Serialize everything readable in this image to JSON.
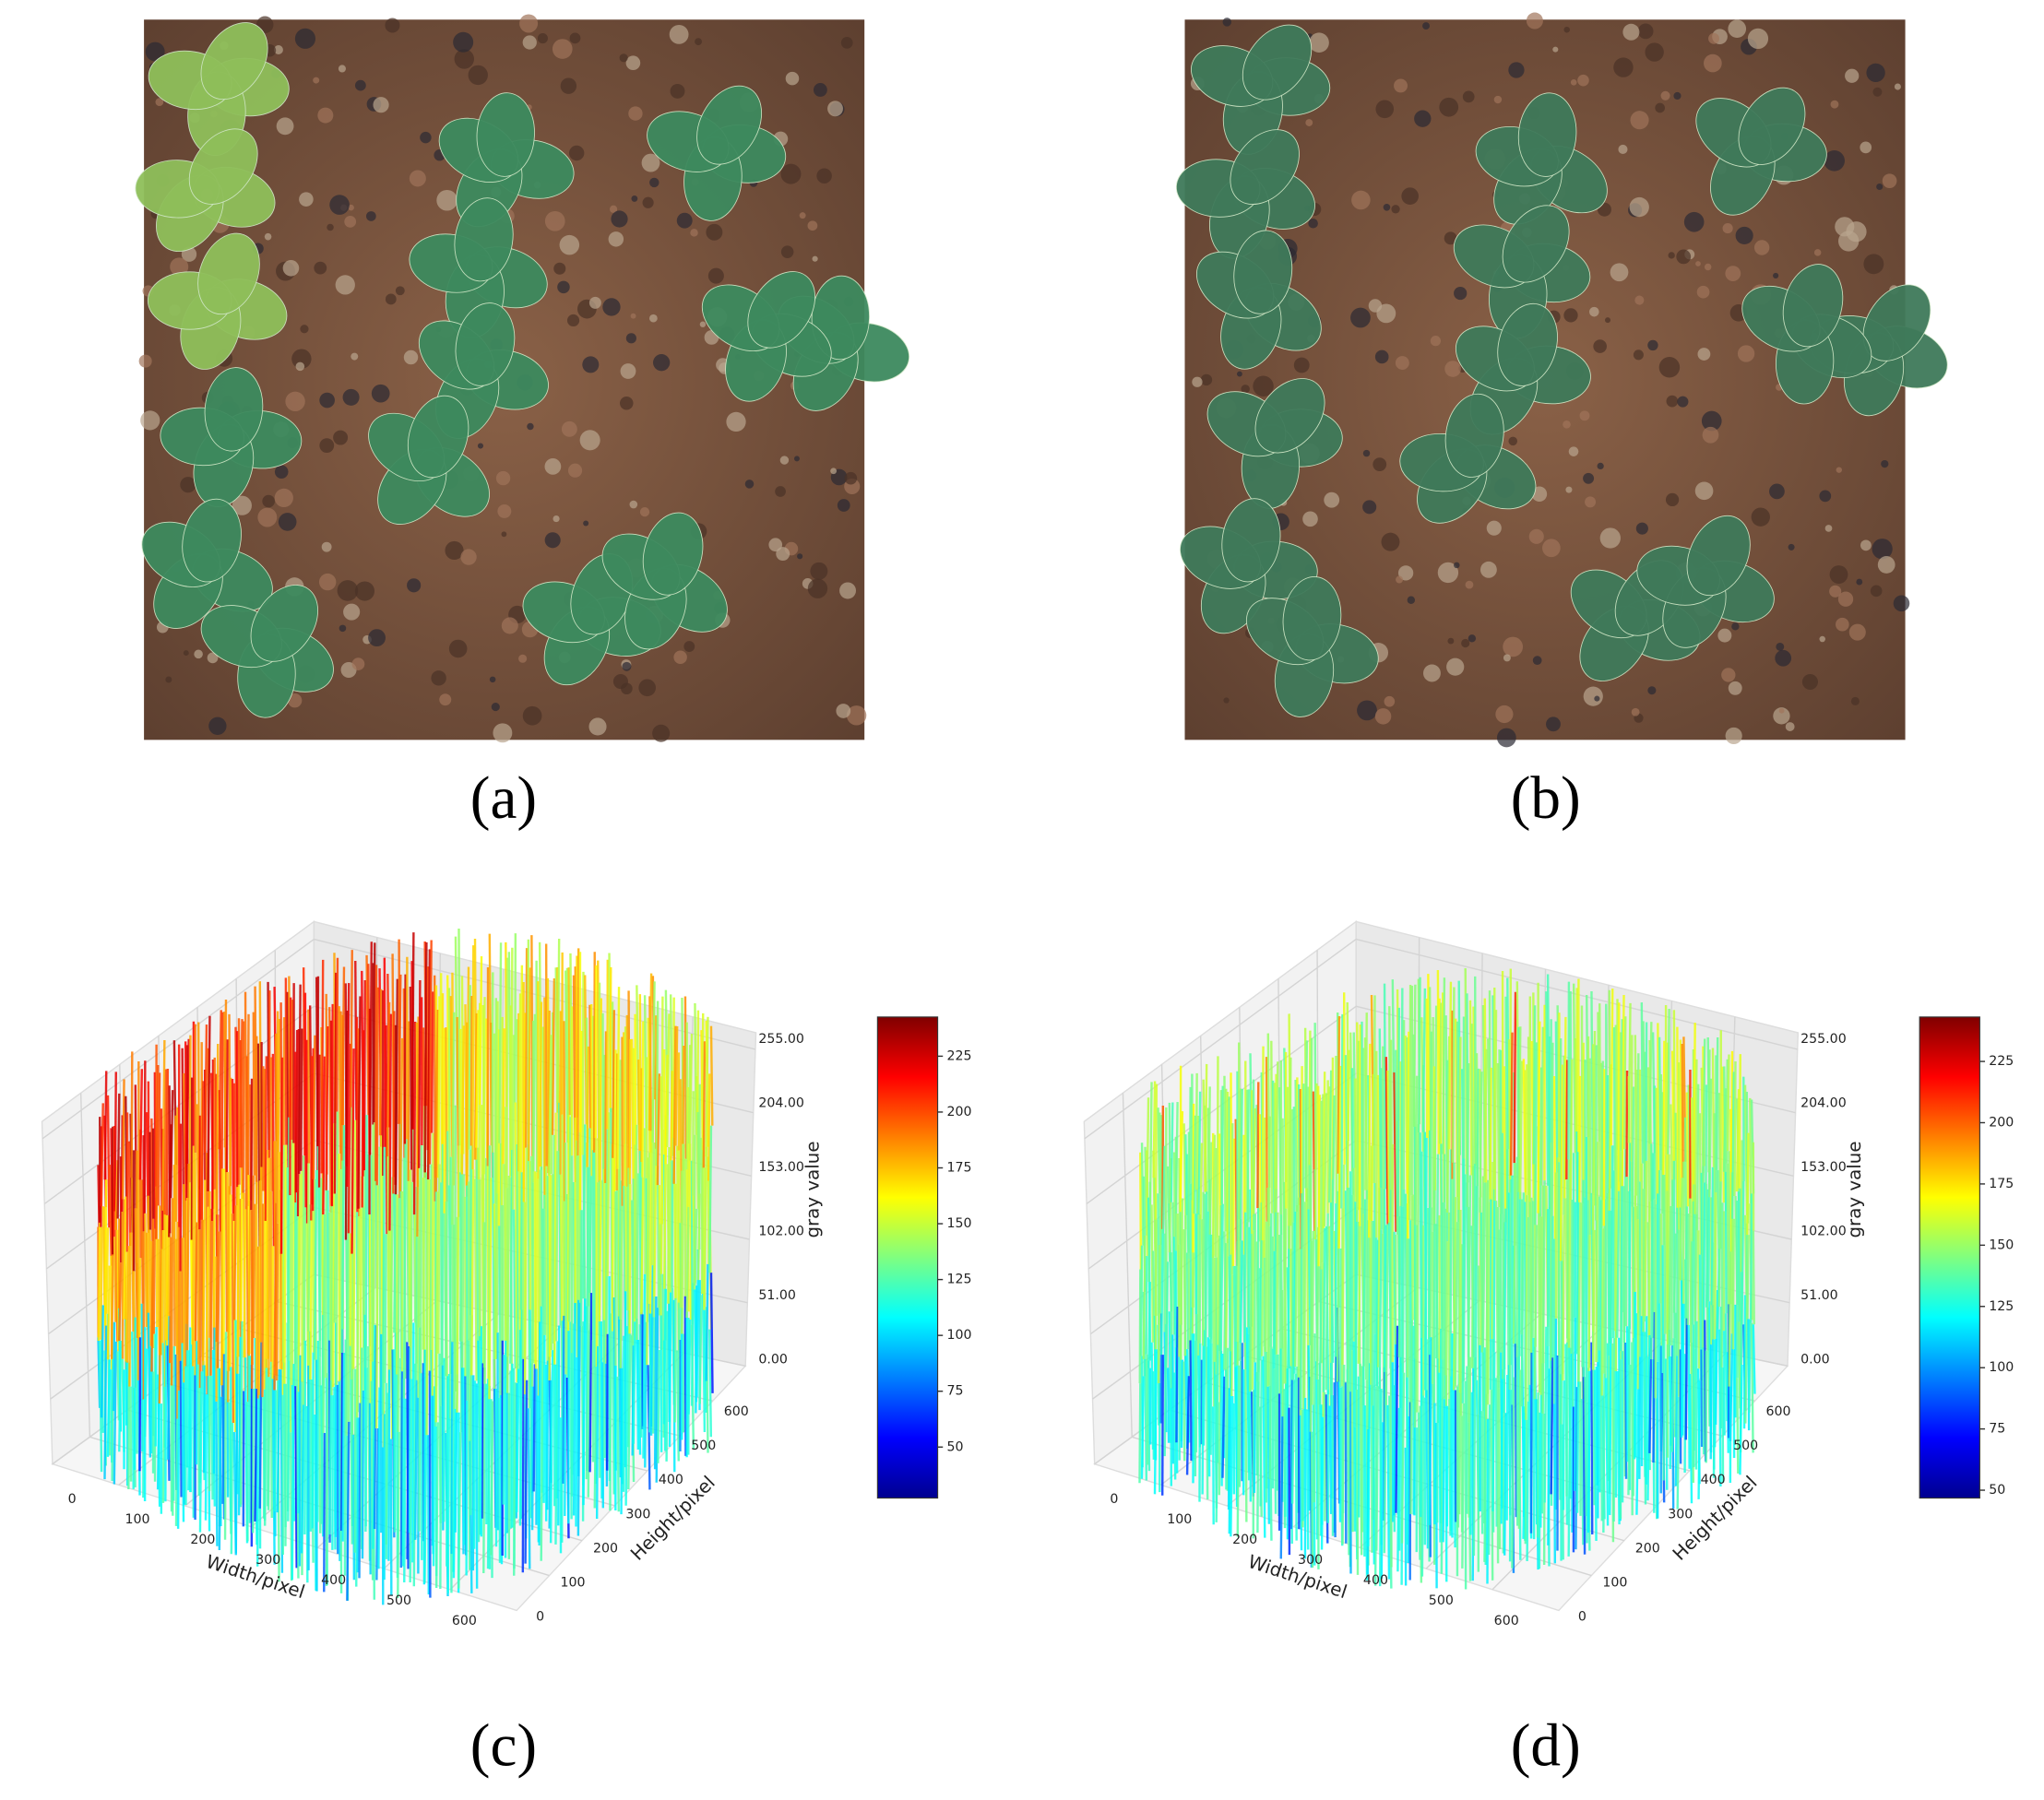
{
  "panels": [
    {
      "label": "(a)"
    },
    {
      "label": "(b)"
    },
    {
      "label": "(c)",
      "plot": {
        "x_label": "Width/pixel",
        "y_label": "Height/pixel",
        "z_label": "gray value",
        "x_ticks": [
          "0",
          "100",
          "200",
          "300",
          "400",
          "500",
          "600"
        ],
        "y_ticks": [
          "0",
          "100",
          "200",
          "300",
          "400",
          "500",
          "600"
        ],
        "z_ticks": [
          "0.00",
          "51.00",
          "102.00",
          "153.00",
          "204.00",
          "255.00"
        ],
        "colorbar_ticks": [
          "50",
          "75",
          "100",
          "125",
          "150",
          "175",
          "200",
          "225"
        ]
      }
    },
    {
      "label": "(d)",
      "plot": {
        "x_label": "Width/pixel",
        "y_label": "Height/pixel",
        "z_label": "gray value",
        "x_ticks": [
          "0",
          "100",
          "200",
          "300",
          "400",
          "500",
          "600"
        ],
        "y_ticks": [
          "0",
          "100",
          "200",
          "300",
          "400",
          "500",
          "600"
        ],
        "z_ticks": [
          "0.00",
          "51.00",
          "102.00",
          "153.00",
          "204.00",
          "255.00"
        ],
        "colorbar_ticks": [
          "50",
          "75",
          "100",
          "125",
          "150",
          "175",
          "200",
          "225"
        ]
      }
    }
  ]
}
